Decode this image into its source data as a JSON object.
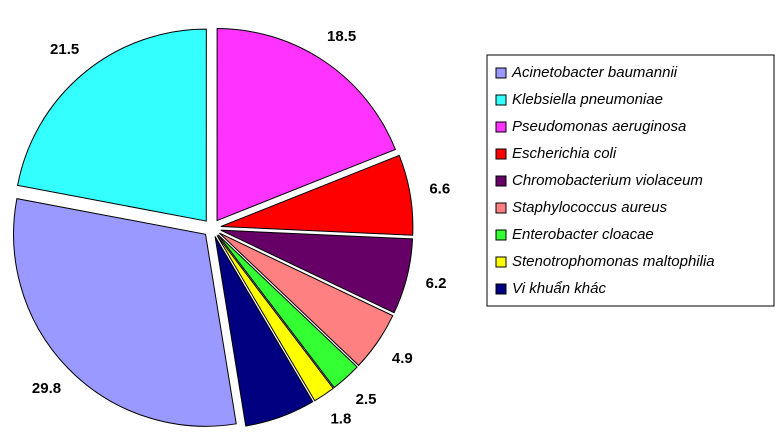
{
  "chart_data": {
    "type": "pie",
    "categories": [
      "Acinetobacter baumannii",
      "Klebsiella pneumoniae",
      "Pseudomonas aeruginosa",
      "Escherichia coli",
      "Chromobacterium violaceum",
      "Staphylococcus aureus",
      "Enterobacter cloacae",
      "Stenotrophomonas maltophilia",
      "Vi khuẩn khác"
    ],
    "values": [
      29.8,
      21.5,
      18.5,
      6.6,
      6.2,
      4.9,
      2.5,
      1.8,
      5.8
    ],
    "colors": [
      "#9999ff",
      "#33ffff",
      "#ff33ff",
      "#ff0000",
      "#660066",
      "#ff8080",
      "#33ff33",
      "#ffff00",
      "#000080"
    ],
    "legend": "right"
  }
}
